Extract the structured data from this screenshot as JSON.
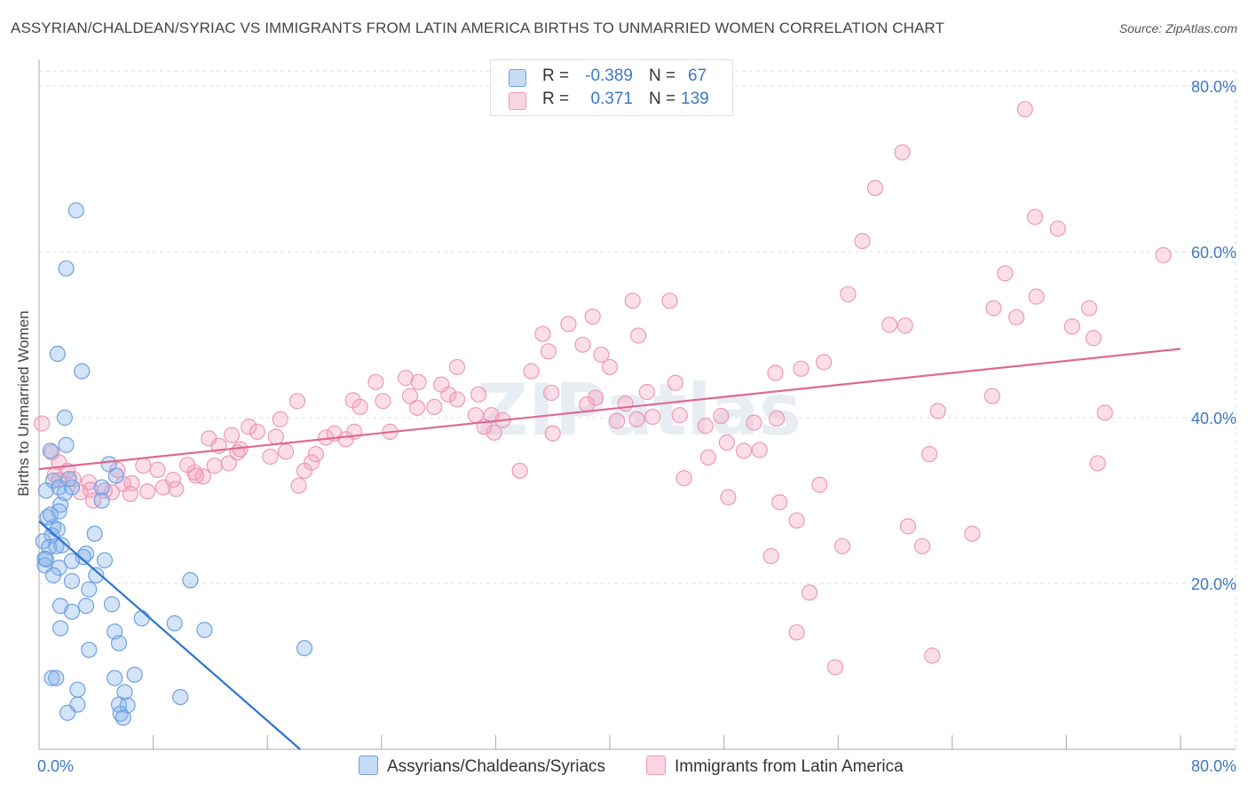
{
  "title": "ASSYRIAN/CHALDEAN/SYRIAC VS IMMIGRANTS FROM LATIN AMERICA BIRTHS TO UNMARRIED WOMEN CORRELATION CHART",
  "source": "Source: ZipAtlas.com",
  "watermark": "ZIPatlas",
  "colors": {
    "blue_fill": "rgba(130,175,235,0.35)",
    "blue_stroke": "#6fa1df",
    "blue_line": "#2e72d2",
    "pink_fill": "rgba(245,160,190,0.35)",
    "pink_stroke": "#ec9ab6",
    "pink_line": "#e06892",
    "axis_label": "#3b78c6",
    "grid": "#dddddd"
  },
  "stats": {
    "r_label": "R =",
    "n_label": "N =",
    "rows": [
      {
        "r": "-0.389",
        "n": "67",
        "swatch": "blue"
      },
      {
        "r": "0.371",
        "n": "139",
        "swatch": "pink"
      }
    ]
  },
  "legend": {
    "items": [
      "Assyrians/Chaldeans/Syriacs",
      "Immigrants from Latin America"
    ]
  },
  "chart_data": {
    "type": "scatter",
    "title": "ASSYRIAN/CHALDEAN/SYRIAC VS IMMIGRANTS FROM LATIN AMERICA BIRTHS TO UNMARRIED WOMEN CORRELATION CHART",
    "xlabel": "",
    "ylabel": "Births to Unmarried Women",
    "xlim": [
      0,
      80
    ],
    "ylim": [
      0,
      82
    ],
    "x_tick_labels": [
      "0.0%",
      "80.0%"
    ],
    "y_ticks": [
      20,
      40,
      60,
      80
    ],
    "y_tick_labels": [
      "20.0%",
      "40.0%",
      "60.0%",
      "80.0%"
    ],
    "grid": true,
    "legend_position": "bottom",
    "series": [
      {
        "name": "Assyrians/Chaldeans/Syriacs",
        "color": "blue",
        "trend": {
          "x": [
            0.0,
            18.3
          ],
          "y": [
            27.5,
            0.0
          ]
        },
        "points": [
          [
            2.6,
            65.0
          ],
          [
            1.9,
            58.0
          ],
          [
            1.3,
            47.7
          ],
          [
            3.0,
            45.6
          ],
          [
            1.8,
            40.0
          ],
          [
            0.8,
            36.0
          ],
          [
            1.9,
            36.7
          ],
          [
            4.9,
            34.4
          ],
          [
            5.4,
            33.0
          ],
          [
            1.0,
            32.4
          ],
          [
            1.4,
            31.6
          ],
          [
            1.8,
            30.9
          ],
          [
            2.3,
            31.6
          ],
          [
            4.4,
            31.6
          ],
          [
            0.5,
            31.2
          ],
          [
            1.5,
            29.5
          ],
          [
            4.4,
            30.0
          ],
          [
            1.4,
            28.7
          ],
          [
            0.6,
            28.0
          ],
          [
            1.0,
            26.8
          ],
          [
            0.9,
            25.8
          ],
          [
            3.9,
            26.0
          ],
          [
            0.3,
            25.1
          ],
          [
            0.7,
            24.4
          ],
          [
            1.6,
            24.6
          ],
          [
            0.4,
            23.0
          ],
          [
            3.3,
            23.6
          ],
          [
            2.3,
            22.7
          ],
          [
            4.6,
            22.8
          ],
          [
            0.4,
            22.2
          ],
          [
            1.4,
            21.9
          ],
          [
            1.0,
            21.0
          ],
          [
            2.3,
            20.3
          ],
          [
            4.0,
            21.0
          ],
          [
            10.6,
            20.4
          ],
          [
            3.5,
            19.3
          ],
          [
            1.5,
            17.3
          ],
          [
            2.3,
            16.6
          ],
          [
            3.3,
            17.3
          ],
          [
            5.1,
            17.5
          ],
          [
            7.2,
            15.8
          ],
          [
            9.5,
            15.2
          ],
          [
            1.5,
            14.6
          ],
          [
            5.3,
            14.2
          ],
          [
            11.6,
            14.4
          ],
          [
            3.5,
            12.0
          ],
          [
            5.6,
            12.8
          ],
          [
            18.6,
            12.2
          ],
          [
            6.7,
            9.0
          ],
          [
            0.9,
            8.6
          ],
          [
            1.2,
            8.6
          ],
          [
            5.3,
            8.6
          ],
          [
            2.7,
            7.2
          ],
          [
            6.0,
            6.9
          ],
          [
            9.9,
            6.3
          ],
          [
            2.7,
            5.4
          ],
          [
            5.6,
            5.4
          ],
          [
            6.2,
            5.3
          ],
          [
            2.0,
            4.4
          ],
          [
            5.7,
            4.3
          ],
          [
            5.9,
            3.8
          ],
          [
            0.5,
            22.9
          ],
          [
            1.2,
            24.5
          ],
          [
            2.1,
            32.6
          ],
          [
            0.8,
            28.3
          ],
          [
            3.1,
            23.2
          ],
          [
            1.3,
            26.5
          ]
        ]
      },
      {
        "name": "Immigrants from Latin America",
        "color": "pink",
        "trend": {
          "x": [
            0.0,
            80.0
          ],
          "y": [
            33.8,
            48.3
          ]
        },
        "points": [
          [
            69.1,
            77.2
          ],
          [
            60.5,
            72.0
          ],
          [
            58.6,
            67.7
          ],
          [
            69.8,
            64.2
          ],
          [
            71.4,
            62.8
          ],
          [
            57.7,
            61.3
          ],
          [
            78.8,
            59.6
          ],
          [
            67.7,
            57.4
          ],
          [
            56.7,
            54.9
          ],
          [
            69.9,
            54.6
          ],
          [
            41.6,
            54.1
          ],
          [
            44.2,
            54.1
          ],
          [
            66.9,
            53.2
          ],
          [
            73.6,
            53.2
          ],
          [
            38.8,
            52.2
          ],
          [
            68.5,
            52.1
          ],
          [
            59.6,
            51.2
          ],
          [
            60.7,
            51.1
          ],
          [
            72.4,
            51.0
          ],
          [
            37.1,
            51.3
          ],
          [
            35.3,
            50.1
          ],
          [
            42.0,
            49.9
          ],
          [
            73.9,
            49.6
          ],
          [
            38.1,
            48.8
          ],
          [
            35.7,
            48.0
          ],
          [
            39.4,
            47.6
          ],
          [
            40.0,
            46.1
          ],
          [
            55.0,
            46.7
          ],
          [
            29.3,
            46.1
          ],
          [
            34.5,
            45.6
          ],
          [
            53.4,
            45.9
          ],
          [
            51.6,
            45.4
          ],
          [
            25.7,
            44.8
          ],
          [
            23.6,
            44.3
          ],
          [
            26.6,
            44.3
          ],
          [
            28.2,
            44.0
          ],
          [
            44.6,
            44.2
          ],
          [
            42.6,
            43.1
          ],
          [
            35.9,
            43.0
          ],
          [
            26.0,
            42.6
          ],
          [
            28.7,
            42.8
          ],
          [
            30.8,
            42.8
          ],
          [
            39.0,
            42.4
          ],
          [
            22.0,
            42.1
          ],
          [
            29.3,
            42.2
          ],
          [
            24.1,
            42.0
          ],
          [
            18.1,
            42.0
          ],
          [
            22.5,
            41.3
          ],
          [
            38.4,
            41.6
          ],
          [
            41.1,
            41.7
          ],
          [
            27.7,
            41.3
          ],
          [
            66.8,
            42.6
          ],
          [
            26.5,
            41.2
          ],
          [
            63.0,
            40.8
          ],
          [
            74.7,
            40.6
          ],
          [
            30.6,
            40.3
          ],
          [
            31.7,
            40.3
          ],
          [
            43.0,
            40.1
          ],
          [
            44.9,
            40.3
          ],
          [
            47.8,
            40.2
          ],
          [
            41.9,
            39.8
          ],
          [
            16.9,
            39.8
          ],
          [
            32.5,
            39.7
          ],
          [
            50.1,
            39.4
          ],
          [
            40.5,
            39.6
          ],
          [
            51.7,
            39.9
          ],
          [
            14.7,
            38.9
          ],
          [
            31.2,
            38.9
          ],
          [
            46.7,
            39.0
          ],
          [
            15.3,
            38.3
          ],
          [
            22.1,
            38.3
          ],
          [
            24.6,
            38.3
          ],
          [
            20.7,
            38.1
          ],
          [
            36.0,
            38.1
          ],
          [
            13.5,
            37.9
          ],
          [
            20.1,
            37.6
          ],
          [
            16.6,
            37.7
          ],
          [
            31.9,
            38.2
          ],
          [
            21.5,
            37.4
          ],
          [
            11.9,
            37.5
          ],
          [
            48.2,
            37.0
          ],
          [
            12.6,
            36.6
          ],
          [
            13.9,
            35.8
          ],
          [
            0.2,
            39.3
          ],
          [
            14.1,
            36.2
          ],
          [
            49.4,
            36.0
          ],
          [
            50.5,
            36.1
          ],
          [
            19.4,
            35.6
          ],
          [
            0.9,
            35.8
          ],
          [
            16.2,
            35.3
          ],
          [
            46.9,
            35.2
          ],
          [
            62.4,
            35.6
          ],
          [
            7.3,
            34.2
          ],
          [
            10.4,
            34.3
          ],
          [
            8.3,
            33.7
          ],
          [
            12.3,
            34.2
          ],
          [
            5.5,
            33.7
          ],
          [
            10.9,
            33.4
          ],
          [
            1.4,
            34.6
          ],
          [
            2.0,
            33.6
          ],
          [
            1.4,
            32.5
          ],
          [
            11.5,
            32.9
          ],
          [
            33.7,
            33.6
          ],
          [
            18.6,
            33.6
          ],
          [
            74.2,
            34.5
          ],
          [
            19.1,
            34.6
          ],
          [
            5.9,
            32.0
          ],
          [
            45.2,
            32.7
          ],
          [
            8.7,
            31.6
          ],
          [
            3.5,
            32.2
          ],
          [
            6.5,
            32.1
          ],
          [
            9.4,
            32.5
          ],
          [
            3.6,
            31.3
          ],
          [
            5.1,
            31.0
          ],
          [
            4.6,
            31.2
          ],
          [
            18.2,
            31.8
          ],
          [
            54.7,
            31.9
          ],
          [
            6.4,
            30.8
          ],
          [
            7.6,
            31.1
          ],
          [
            3.8,
            30.0
          ],
          [
            2.9,
            31.0
          ],
          [
            48.3,
            30.4
          ],
          [
            51.9,
            29.8
          ],
          [
            53.1,
            27.6
          ],
          [
            60.9,
            26.9
          ],
          [
            65.4,
            26.0
          ],
          [
            56.3,
            24.5
          ],
          [
            61.9,
            24.5
          ],
          [
            51.3,
            23.3
          ],
          [
            54.0,
            18.9
          ],
          [
            53.1,
            14.1
          ],
          [
            62.6,
            11.3
          ],
          [
            55.8,
            9.9
          ],
          [
            2.4,
            32.6
          ],
          [
            1.1,
            33.1
          ],
          [
            9.6,
            31.4
          ],
          [
            11.0,
            33.0
          ],
          [
            13.3,
            34.5
          ],
          [
            17.3,
            35.9
          ]
        ]
      }
    ]
  }
}
